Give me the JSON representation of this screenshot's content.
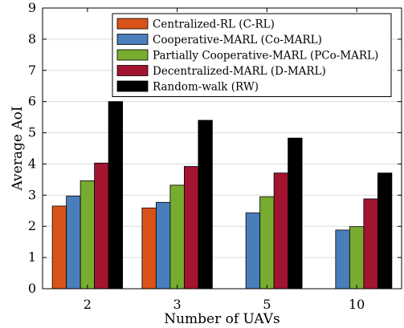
{
  "chart_data": {
    "type": "bar",
    "title": "",
    "xlabel": "Number of UAVs",
    "ylabel": "Average AoI",
    "categories": [
      "2",
      "3",
      "5",
      "10"
    ],
    "ylim": [
      0,
      9
    ],
    "yticks": [
      0,
      1,
      2,
      3,
      4,
      5,
      6,
      7,
      8,
      9
    ],
    "grid": true,
    "legend_position": "top-right",
    "series": [
      {
        "name": "Centralized-RL (C-RL)",
        "color": "#D95319",
        "values": [
          2.65,
          2.59,
          null,
          null
        ]
      },
      {
        "name": "Cooperative-MARL (Co-MARL)",
        "color": "#4A7EBB",
        "values": [
          2.97,
          2.77,
          2.43,
          1.88
        ]
      },
      {
        "name": "Partially Cooperative-MARL (PCo-MARL)",
        "color": "#77AC30",
        "values": [
          3.46,
          3.32,
          2.95,
          1.99
        ]
      },
      {
        "name": "Decentralized-MARL (D-MARL)",
        "color": "#A2142F",
        "values": [
          4.03,
          3.92,
          3.71,
          2.88
        ]
      },
      {
        "name": "Random-walk (RW)",
        "color": "#000000",
        "values": [
          6.0,
          5.4,
          4.83,
          3.71
        ]
      }
    ]
  }
}
